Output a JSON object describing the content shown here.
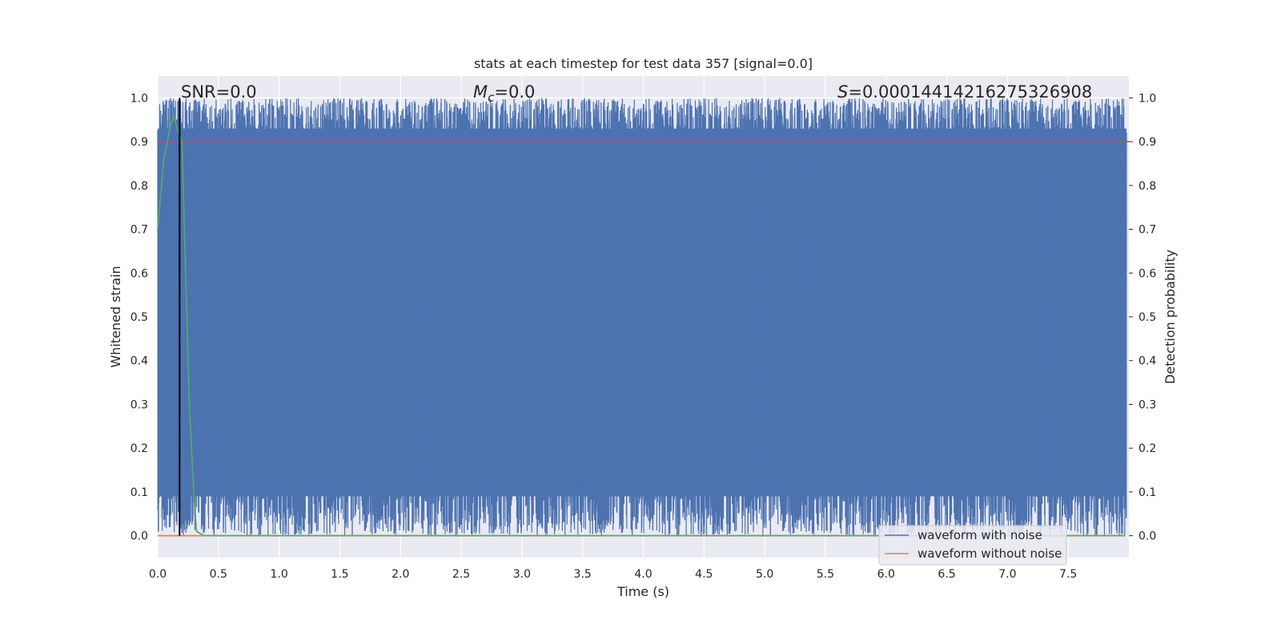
{
  "chart_data": {
    "type": "line",
    "title": "stats at each timestep for test data 357 [signal=0.0]",
    "xlabel": "Time (s)",
    "ylabel_left": "Whitened strain",
    "ylabel_right": "Detection probability",
    "xlim": [
      0.0,
      8.0
    ],
    "ylim": [
      -0.05,
      1.05
    ],
    "x_ticks": [
      "0.0",
      "0.5",
      "1.0",
      "1.5",
      "2.0",
      "2.5",
      "3.0",
      "3.5",
      "4.0",
      "4.5",
      "5.0",
      "5.5",
      "6.0",
      "6.5",
      "7.0",
      "7.5"
    ],
    "y_ticks": [
      "0.0",
      "0.1",
      "0.2",
      "0.3",
      "0.4",
      "0.5",
      "0.6",
      "0.7",
      "0.8",
      "0.9",
      "1.0"
    ],
    "grid": true,
    "annotations": {
      "snr": "SNR=0.0",
      "mc_symbol": "M",
      "mc_subscript": "c",
      "mc_value": "=0.0",
      "s_symbol": "S",
      "s_value": "=0.00014414216275326908"
    },
    "legend": {
      "placement": "lower-right",
      "entries": [
        "waveform with noise",
        "waveform without noise"
      ]
    },
    "series": [
      {
        "name": "waveform with noise",
        "color": "#4c72b0",
        "note_range": [
          0.0,
          1.0
        ],
        "samples": 8000
      },
      {
        "name": "waveform without noise",
        "color": "#dd8452",
        "x": [
          0.0,
          7.97
        ],
        "values": [
          0.0,
          0.0
        ]
      },
      {
        "color": "#55a868",
        "x": [
          0.0,
          0.05,
          0.1,
          0.13,
          0.16,
          0.2,
          0.23,
          0.26,
          0.3,
          0.32,
          0.38,
          7.97
        ],
        "values": [
          0.7,
          0.86,
          0.93,
          0.96,
          0.93,
          0.9,
          0.6,
          0.3,
          0.08,
          0.01,
          0.0,
          0.0
        ]
      }
    ],
    "threshold": {
      "color": "#c44e52",
      "y": 0.9
    },
    "marker_line": {
      "color": "#000000",
      "x": 0.18,
      "y_range": [
        0.0,
        1.0
      ]
    }
  }
}
